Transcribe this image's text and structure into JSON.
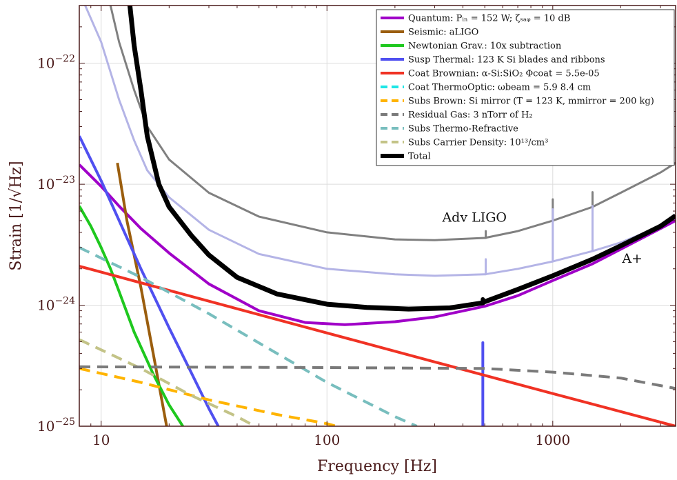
{
  "chart_data": {
    "type": "line",
    "xscale": "log",
    "yscale": "log",
    "xlim": [
      8,
      3500
    ],
    "ylim": [
      1e-25,
      3e-22
    ],
    "grid": true,
    "xlabel": "Frequency [Hz]",
    "ylabel": "Strain [1/√Hz]",
    "x_ticks": [
      {
        "value": 10,
        "label": "10"
      },
      {
        "value": 100,
        "label": "100"
      },
      {
        "value": 1000,
        "label": "1000"
      }
    ],
    "y_ticks": [
      {
        "value": 1e-25,
        "base": "10",
        "exp": "−25"
      },
      {
        "value": 1e-24,
        "base": "10",
        "exp": "−24"
      },
      {
        "value": 1e-23,
        "base": "10",
        "exp": "−23"
      },
      {
        "value": 1e-22,
        "base": "10",
        "exp": "−22"
      }
    ],
    "legend_position": "top-right",
    "series": [
      {
        "name": "Quantum: Pᵢₙ = 152 W; ζₛₐᵩ = 10 dB",
        "color": "#a000c8",
        "dash": "solid",
        "width": 4,
        "points": [
          [
            8,
            1.45e-23
          ],
          [
            10,
            9.6e-24
          ],
          [
            12,
            6.6e-24
          ],
          [
            15,
            4.3e-24
          ],
          [
            20,
            2.7e-24
          ],
          [
            30,
            1.5e-24
          ],
          [
            50,
            9e-25
          ],
          [
            80,
            7.2e-25
          ],
          [
            120,
            6.9e-25
          ],
          [
            200,
            7.3e-25
          ],
          [
            300,
            8e-25
          ],
          [
            500,
            9.8e-25
          ],
          [
            700,
            1.2e-24
          ],
          [
            1000,
            1.6e-24
          ],
          [
            1500,
            2.2e-24
          ],
          [
            2000,
            2.9e-24
          ],
          [
            3000,
            4.3e-24
          ],
          [
            3500,
            5e-24
          ]
        ]
      },
      {
        "name": "Seismic: aLIGO",
        "color": "#9b5e0e",
        "dash": "solid",
        "width": 4,
        "points": [
          [
            11.8,
            1.5e-23
          ],
          [
            13,
            5e-24
          ],
          [
            15,
            1.4e-24
          ],
          [
            17,
            4e-25
          ],
          [
            19.5,
            1e-25
          ]
        ]
      },
      {
        "name": "Newtonian Grav.: 10x subtraction",
        "color": "#1ec81e",
        "dash": "solid",
        "width": 4,
        "points": [
          [
            8,
            6.6e-24
          ],
          [
            9,
            4.5e-24
          ],
          [
            10,
            3e-24
          ],
          [
            11,
            2e-24
          ],
          [
            12,
            1.3e-24
          ],
          [
            14,
            6e-25
          ],
          [
            17,
            2.7e-25
          ],
          [
            20,
            1.5e-25
          ],
          [
            23,
            1e-25
          ]
        ]
      },
      {
        "name": "Susp Thermal: 123 K Si blades and ribbons",
        "color": "#5050f0",
        "dash": "solid",
        "width": 4,
        "points": [
          [
            8,
            2.5e-23
          ],
          [
            10,
            1.07e-23
          ],
          [
            15,
            2e-24
          ],
          [
            20,
            6.5e-25
          ],
          [
            25,
            2.8e-25
          ],
          [
            30,
            1.4e-25
          ],
          [
            33,
            1e-25
          ]
        ]
      },
      {
        "name": "Coat Brownian: α-Si:SiO₂ Φcoat = 5.5e-05",
        "color": "#f03224",
        "dash": "solid",
        "width": 4,
        "points": [
          [
            8,
            2.1e-24
          ],
          [
            30,
            1.08e-24
          ],
          [
            100,
            5.9e-25
          ],
          [
            300,
            3.4e-25
          ],
          [
            1000,
            1.86e-25
          ],
          [
            3500,
            1e-25
          ]
        ]
      },
      {
        "name": "Coat ThermoOptic: ωbeam = 5.9 8.4 cm",
        "color": "#1ee6e6",
        "dash": "dash",
        "width": 4,
        "points": []
      },
      {
        "name": "Subs Brown: Si mirror (T = 123 K, mmirror = 200 kg)",
        "color": "#ffb400",
        "dash": "dash",
        "width": 4,
        "points": [
          [
            8,
            3e-25
          ],
          [
            15,
            2.3e-25
          ],
          [
            30,
            1.65e-25
          ],
          [
            60,
            1.25e-25
          ],
          [
            100,
            1.05e-25
          ],
          [
            110,
            1e-25
          ]
        ]
      },
      {
        "name": "Residual Gas: 3 nTorr of H₂",
        "color": "#7a7a7a",
        "dash": "dash",
        "width": 4,
        "points": [
          [
            8,
            3.1e-25
          ],
          [
            100,
            3.05e-25
          ],
          [
            500,
            3e-25
          ],
          [
            1000,
            2.8e-25
          ],
          [
            2000,
            2.5e-25
          ],
          [
            3500,
            2.05e-25
          ]
        ]
      },
      {
        "name": "Subs Thermo-Refractive",
        "color": "#78bebe",
        "dash": "dash",
        "width": 4,
        "points": [
          [
            8,
            3e-24
          ],
          [
            15,
            1.7e-24
          ],
          [
            30,
            8.5e-25
          ],
          [
            60,
            4e-25
          ],
          [
            100,
            2.3e-25
          ],
          [
            200,
            1.2e-25
          ],
          [
            250,
            1e-25
          ]
        ]
      },
      {
        "name": "Subs Carrier Density: 10¹³/cm³",
        "color": "#c3c387",
        "dash": "dash",
        "width": 4,
        "points": [
          [
            8,
            5.2e-25
          ],
          [
            15,
            3e-25
          ],
          [
            25,
            1.8e-25
          ],
          [
            40,
            1.2e-25
          ],
          [
            48,
            1e-25
          ]
        ]
      },
      {
        "name": "Total",
        "color": "#000000",
        "dash": "solid",
        "width": 7,
        "points": [
          [
            13.4,
            3e-22
          ],
          [
            14,
            1.4e-22
          ],
          [
            15,
            6e-23
          ],
          [
            16,
            2.5e-23
          ],
          [
            18,
            1e-23
          ],
          [
            20,
            6.5e-24
          ],
          [
            25,
            3.8e-24
          ],
          [
            30,
            2.6e-24
          ],
          [
            40,
            1.7e-24
          ],
          [
            60,
            1.24e-24
          ],
          [
            100,
            1.02e-24
          ],
          [
            150,
            9.6e-25
          ],
          [
            230,
            9.3e-25
          ],
          [
            350,
            9.5e-25
          ],
          [
            480,
            1.04e-24
          ],
          [
            700,
            1.35e-24
          ],
          [
            1000,
            1.75e-24
          ],
          [
            1500,
            2.4e-24
          ],
          [
            2000,
            3.1e-24
          ],
          [
            3000,
            4.5e-24
          ],
          [
            3500,
            5.5e-24
          ]
        ]
      }
    ],
    "extra_curves": [
      {
        "label": "Adv LIGO",
        "color": "#808080",
        "width": 3,
        "points": [
          [
            11,
            3e-22
          ],
          [
            12,
            1.5e-22
          ],
          [
            14,
            6e-23
          ],
          [
            16,
            3e-23
          ],
          [
            20,
            1.6e-23
          ],
          [
            30,
            8.5e-24
          ],
          [
            50,
            5.4e-24
          ],
          [
            100,
            4e-24
          ],
          [
            200,
            3.5e-24
          ],
          [
            300,
            3.45e-24
          ],
          [
            500,
            3.6e-24
          ],
          [
            700,
            4.1e-24
          ],
          [
            1000,
            5e-24
          ],
          [
            1500,
            6.5e-24
          ],
          [
            2000,
            8.5e-24
          ],
          [
            3000,
            1.25e-23
          ],
          [
            3500,
            1.5e-23
          ]
        ]
      },
      {
        "label": "A+",
        "color": "#b4b4e6",
        "width": 3,
        "points": [
          [
            8.5,
            3e-22
          ],
          [
            10,
            1.5e-22
          ],
          [
            12,
            5e-23
          ],
          [
            14,
            2.3e-23
          ],
          [
            16,
            1.3e-23
          ],
          [
            20,
            7.8e-24
          ],
          [
            30,
            4.2e-24
          ],
          [
            50,
            2.65e-24
          ],
          [
            100,
            2e-24
          ],
          [
            200,
            1.8e-24
          ],
          [
            300,
            1.75e-24
          ],
          [
            500,
            1.8e-24
          ],
          [
            700,
            2e-24
          ],
          [
            1000,
            2.3e-24
          ],
          [
            1500,
            2.8e-24
          ],
          [
            2000,
            3.3e-24
          ],
          [
            3000,
            4.5e-24
          ],
          [
            3500,
            5.2e-24
          ]
        ]
      }
    ],
    "spikes": [
      {
        "x": 490,
        "y0": 1e-25,
        "y1": 4.9e-25,
        "color": "#5050f0",
        "width": 4
      },
      {
        "x": 490,
        "y0": 1.03e-24,
        "y1": 1.12e-24,
        "color": "#000000",
        "width": 6
      },
      {
        "x": 505,
        "y0": 3.6e-24,
        "y1": 4.1e-24,
        "color": "#808080",
        "width": 3
      },
      {
        "x": 505,
        "y0": 1.8e-24,
        "y1": 2.4e-24,
        "color": "#b4b4e6",
        "width": 3
      },
      {
        "x": 1000,
        "y0": 5e-24,
        "y1": 7.5e-24,
        "color": "#808080",
        "width": 3
      },
      {
        "x": 1000,
        "y0": 2.3e-24,
        "y1": 6.2e-24,
        "color": "#b4b4e6",
        "width": 3
      },
      {
        "x": 1500,
        "y0": 6.5e-24,
        "y1": 8.6e-24,
        "color": "#808080",
        "width": 3
      },
      {
        "x": 1500,
        "y0": 2.8e-24,
        "y1": 6.6e-24,
        "color": "#b4b4e6",
        "width": 3
      }
    ],
    "annotations": [
      {
        "text": "Adv LIGO",
        "x": 450,
        "y": 4.9e-24
      },
      {
        "text": "A+",
        "x": 2250,
        "y": 2.25e-24
      }
    ]
  }
}
